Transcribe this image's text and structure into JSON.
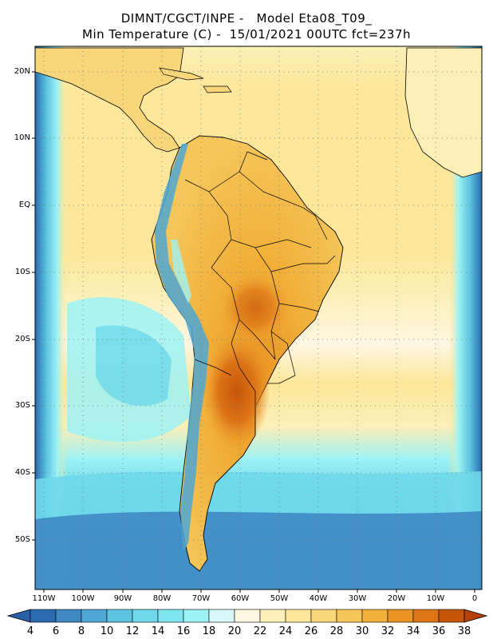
{
  "title": {
    "line1": "DIMNT/CGCT/INPE -   Model Eta08_T09_",
    "line2": "Min Temperature (C) -  15/01/2021 00UTC fct=237h"
  },
  "lat_labels": [
    "20N",
    "10N",
    "EQ",
    "10S",
    "20S",
    "30S",
    "40S",
    "50S"
  ],
  "lon_labels": [
    "110W",
    "100W",
    "90W",
    "80W",
    "70W",
    "60W",
    "50W",
    "40W",
    "30W",
    "20W",
    "10W",
    "0"
  ],
  "colorbar": {
    "labels": [
      "4",
      "6",
      "8",
      "10",
      "12",
      "14",
      "16",
      "18",
      "20",
      "22",
      "24",
      "26",
      "28",
      "30",
      "32",
      "34",
      "36",
      "38"
    ],
    "colors": [
      "#2a6bb0",
      "#3f88c4",
      "#4ea7d4",
      "#5cc3e0",
      "#6fd8ea",
      "#7fe6f0",
      "#9df2f4",
      "#d6f8fb",
      "#fff6e2",
      "#fcf0b8",
      "#fde79a",
      "#f8d77a",
      "#f5c65a",
      "#f1b03a",
      "#e99324",
      "#dd7416",
      "#c65509"
    ],
    "arrow_left": "#2a5fa8",
    "arrow_right": "#b8400a"
  },
  "map_colors": {
    "ocean_warm": "#fde79a",
    "ocean_tropic": "#f8d77a",
    "ocean_mild": "#fcf0b8",
    "ocean_cool": "#9df2f4",
    "ocean_cold": "#5cc3e0",
    "ocean_frigid": "#3f88c4",
    "land_hot": "#f1b03a",
    "land_hotter": "#e99324",
    "land_hottest": "#c65509",
    "andes": "#4ea7d4",
    "border": "#000000",
    "grid": "#777777"
  }
}
